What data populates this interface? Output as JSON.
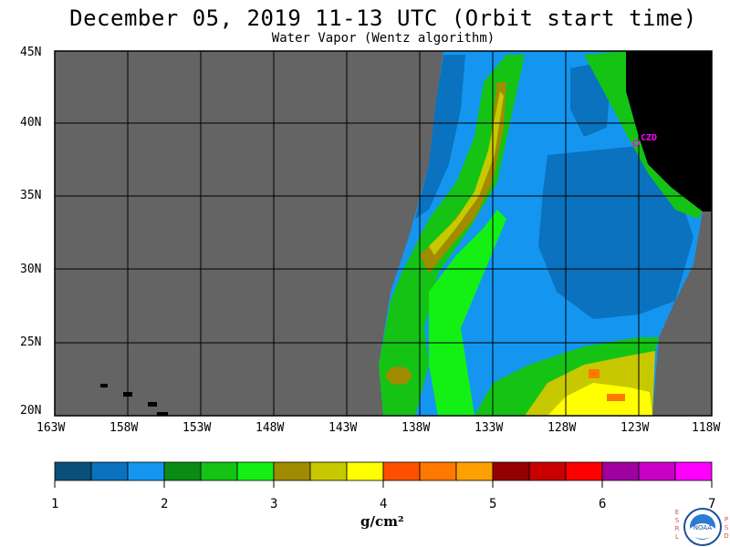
{
  "title": "December 05, 2019  11-13 UTC  (Orbit start time)",
  "subtitle": "Water Vapor (Wentz algorithm)",
  "lat_labels": [
    "45N",
    "40N",
    "35N",
    "30N",
    "25N",
    "20N"
  ],
  "lon_labels": [
    "163W",
    "158W",
    "153W",
    "148W",
    "143W",
    "138W",
    "133W",
    "128W",
    "123W",
    "118W"
  ],
  "station_label": "CZD",
  "colorbar": {
    "ticks": [
      "1",
      "2",
      "3",
      "4",
      "5",
      "6",
      "7"
    ],
    "units": "g/cm²",
    "colors": [
      "#0a4f7a",
      "#0a72be",
      "#1496f0",
      "#0a8c14",
      "#14c314",
      "#14f014",
      "#a08c00",
      "#c8c800",
      "#ffff00",
      "#ff5000",
      "#ff7800",
      "#ffa000",
      "#960000",
      "#c80000",
      "#ff0000",
      "#a000a0",
      "#c800c8",
      "#ff00ff"
    ]
  },
  "colors": {
    "no_data": "#646464",
    "land": "#000000",
    "station": "#ff00ff"
  },
  "logo": {
    "left_letters": [
      "E",
      "S",
      "R",
      "L"
    ],
    "right_letters": [
      "P",
      "S",
      "D"
    ],
    "text": "NOAA"
  }
}
